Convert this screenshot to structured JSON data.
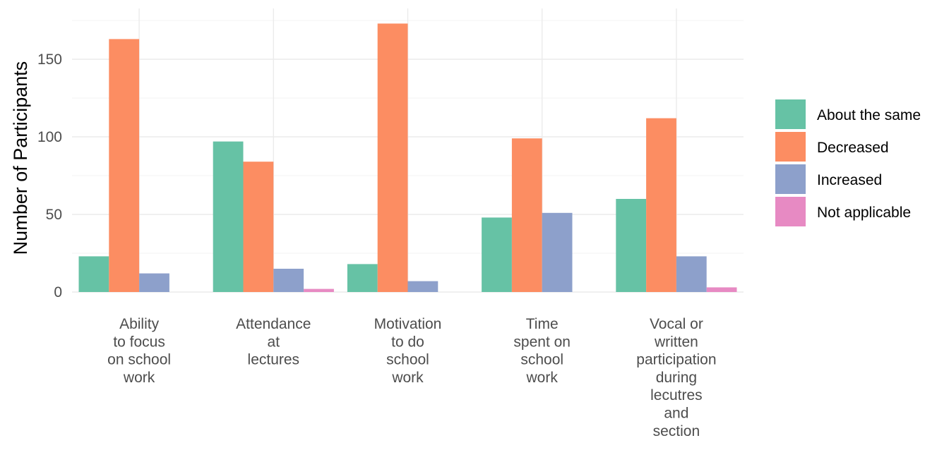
{
  "chart_data": {
    "type": "bar",
    "ylabel": "Number of Participants",
    "xlabel": "",
    "ylim": [
      0,
      180
    ],
    "yticks": [
      0,
      50,
      100,
      150
    ],
    "grid": true,
    "legend_position": "right",
    "categories": [
      "Ability to focus on school work",
      "Attendance at lectures",
      "Motivation to do school work",
      "Time spent on school work",
      "Vocal or written participation during lecutres and section"
    ],
    "category_lines": [
      [
        "Ability",
        "to focus",
        "on school",
        "work"
      ],
      [
        "Attendance",
        "at",
        "lectures"
      ],
      [
        "Motivation",
        "to do",
        "school",
        "work"
      ],
      [
        "Time",
        "spent on",
        "school",
        "work"
      ],
      [
        "Vocal or",
        "written",
        "participation",
        "during",
        "lecutres",
        "and",
        "section"
      ]
    ],
    "series": [
      {
        "name": "About the same",
        "color": "#66c2a5",
        "values": [
          23,
          97,
          18,
          48,
          60
        ]
      },
      {
        "name": "Decreased",
        "color": "#fc8d62",
        "values": [
          163,
          84,
          173,
          99,
          112
        ]
      },
      {
        "name": "Increased",
        "color": "#8da0cb",
        "values": [
          12,
          15,
          7,
          51,
          23
        ]
      },
      {
        "name": "Not applicable",
        "color": "#e78ac3",
        "values": [
          null,
          2,
          null,
          null,
          3
        ]
      }
    ]
  }
}
